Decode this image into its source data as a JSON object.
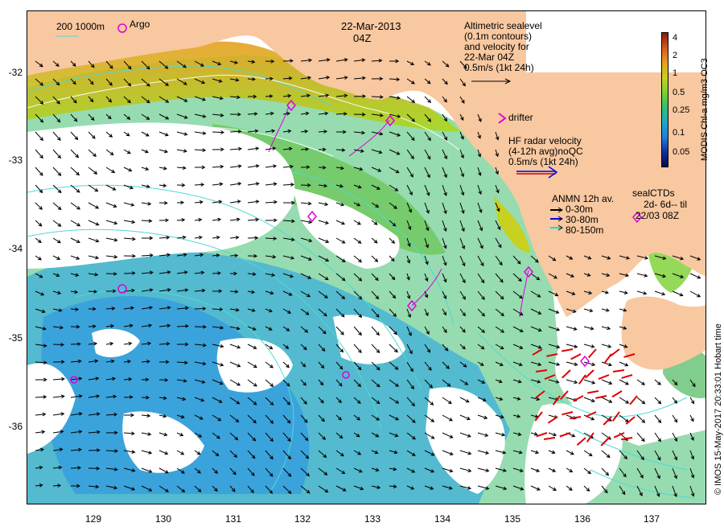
{
  "map": {
    "date": "22-Mar-2013",
    "time": "04Z",
    "scale_bar": "200  1000m",
    "argo_label": "Argo",
    "altimetry_note": [
      "Altimetric sealevel",
      "(0.1m contours)",
      "and velocity for",
      "22-Mar 04Z",
      "0.5m/s (1kt 24h)"
    ],
    "drifter_label": "drifter",
    "hf_radar_note": [
      "HF radar velocity",
      "(4-12h avg)noQC",
      "0.5m/s (1kt 24h)"
    ],
    "anmn_title": "ANMN 12h av.",
    "anmn_items": [
      {
        "label": "0-30m",
        "color": "#000000"
      },
      {
        "label": "30-80m",
        "color": "#0000dd"
      },
      {
        "label": "80-150m",
        "color": "#00dddd"
      }
    ],
    "sealctd_title": "sealCTDs",
    "sealctd_line1": "2d- 6d-- til",
    "sealctd_line2": "22/03 08Z",
    "colorbar_title": "MODIS Chl-a mg/m3 OC3",
    "colorbar_ticks": [
      "4",
      "2",
      "1",
      "0.5",
      "0.25",
      "0.1",
      "0.05"
    ],
    "colorbar_colors": [
      "#8b1a10",
      "#d55a1a",
      "#e8a020",
      "#c8d020",
      "#7ad030",
      "#30c070",
      "#20a8c8",
      "#2080e0",
      "#1030a0",
      "#080850"
    ],
    "credit": "© IMOS 15-May-2017 20:33:01 Hobart time",
    "x_ticks": [
      "129",
      "130",
      "131",
      "132",
      "133",
      "134",
      "135",
      "136",
      "137"
    ],
    "y_ticks": [
      "-32",
      "-33",
      "-34",
      "-35",
      "-36"
    ],
    "land_color": "#f8c8a0",
    "arrow_color": "#000000",
    "hf_arrow_color": "#e00000",
    "marker_color": "#dd00dd",
    "contour_color": "#50d8d8"
  }
}
